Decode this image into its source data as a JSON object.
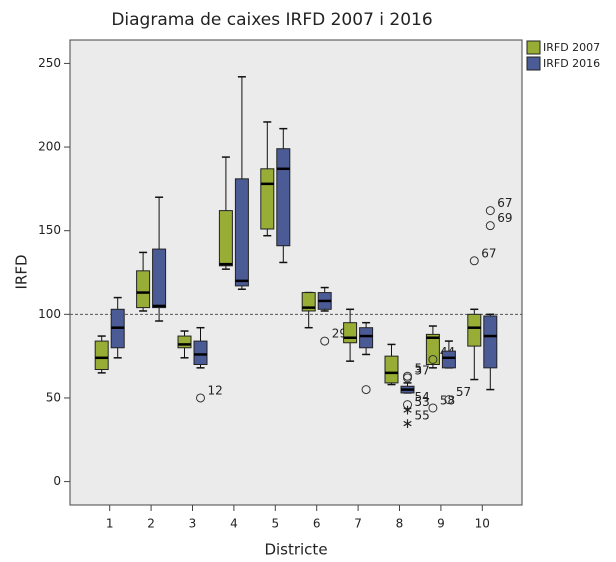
{
  "chart_data": {
    "type": "boxplot",
    "title": "Diagrama de caixes IRFD 2007 i 2016",
    "x_label": "Districte",
    "y_label": "IRFD",
    "categories": [
      "1",
      "2",
      "3",
      "4",
      "5",
      "6",
      "7",
      "8",
      "9",
      "10"
    ],
    "ylim": [
      -14,
      264
    ],
    "yticks": [
      0,
      50,
      100,
      150,
      200,
      250
    ],
    "reference_line": 100,
    "legend": "top-right",
    "series": [
      {
        "name": "IRFD 2007",
        "color": "#97ad35",
        "boxes": [
          {
            "min": 65,
            "q1": 67,
            "median": 74,
            "q3": 84,
            "max": 87,
            "outliers": []
          },
          {
            "min": 102,
            "q1": 104,
            "median": 113,
            "q3": 126,
            "max": 137,
            "outliers": []
          },
          {
            "min": 74,
            "q1": 80,
            "median": 82,
            "q3": 87,
            "max": 90,
            "outliers": []
          },
          {
            "min": 127,
            "q1": 129,
            "median": 130,
            "q3": 162,
            "max": 194,
            "outliers": []
          },
          {
            "min": 147,
            "q1": 151,
            "median": 178,
            "q3": 187,
            "max": 215,
            "outliers": []
          },
          {
            "min": 92,
            "q1": 102,
            "median": 104,
            "q3": 113,
            "max": 113,
            "outliers": []
          },
          {
            "min": 72,
            "q1": 83,
            "median": 86,
            "q3": 95,
            "max": 103,
            "outliers": []
          },
          {
            "min": 58,
            "q1": 59,
            "median": 65,
            "q3": 75,
            "max": 82,
            "outliers": []
          },
          {
            "min": 68,
            "q1": 70,
            "median": 86,
            "q3": 88,
            "max": 93,
            "outliers": [
              {
                "value": 73,
                "label": "44",
                "marker": "circle"
              },
              {
                "value": 44,
                "label": "58",
                "marker": "circle"
              }
            ]
          },
          {
            "min": 61,
            "q1": 81,
            "median": 92,
            "q3": 100,
            "max": 103,
            "outliers": [
              {
                "value": 132,
                "label": "67",
                "marker": "circle"
              }
            ]
          }
        ]
      },
      {
        "name": "IRFD 2016",
        "color": "#4b5b96",
        "boxes": [
          {
            "min": 74,
            "q1": 80,
            "median": 92,
            "q3": 103,
            "max": 110,
            "outliers": []
          },
          {
            "min": 96,
            "q1": 104,
            "median": 105,
            "q3": 139,
            "max": 170,
            "outliers": []
          },
          {
            "min": 68,
            "q1": 70,
            "median": 76,
            "q3": 84,
            "max": 92,
            "outliers": [
              {
                "value": 50,
                "label": "12",
                "marker": "circle"
              }
            ]
          },
          {
            "min": 115,
            "q1": 117,
            "median": 120,
            "q3": 181,
            "max": 242,
            "outliers": []
          },
          {
            "min": 131,
            "q1": 141,
            "median": 187,
            "q3": 199,
            "max": 211,
            "outliers": []
          },
          {
            "min": 102,
            "q1": 103,
            "median": 108,
            "q3": 113,
            "max": 116,
            "outliers": [
              {
                "value": 84,
                "label": "29",
                "marker": "circle"
              }
            ]
          },
          {
            "min": 76,
            "q1": 80,
            "median": 87,
            "q3": 92,
            "max": 95,
            "outliers": [
              {
                "value": 55,
                "marker": "circle"
              }
            ]
          },
          {
            "min": 53,
            "q1": 53,
            "median": 55,
            "q3": 57,
            "max": 59,
            "outliers": [
              {
                "value": 63,
                "label": "5",
                "marker": "circle"
              },
              {
                "value": 62,
                "label": "37",
                "marker": "circle"
              },
              {
                "value": 46,
                "label": "54",
                "marker": "circle"
              },
              {
                "value": 43,
                "label": "53",
                "marker": "star"
              },
              {
                "value": 35,
                "label": "55",
                "marker": "star"
              }
            ]
          },
          {
            "min": 68,
            "q1": 68,
            "median": 74,
            "q3": 78,
            "max": 84,
            "outliers": [
              {
                "value": 49,
                "label": "57",
                "marker": "circle"
              }
            ]
          },
          {
            "min": 55,
            "q1": 68,
            "median": 87,
            "q3": 99,
            "max": 100,
            "outliers": [
              {
                "value": 162,
                "label": "67",
                "marker": "circle"
              },
              {
                "value": 153,
                "label": "69",
                "marker": "circle"
              }
            ]
          }
        ]
      }
    ]
  }
}
